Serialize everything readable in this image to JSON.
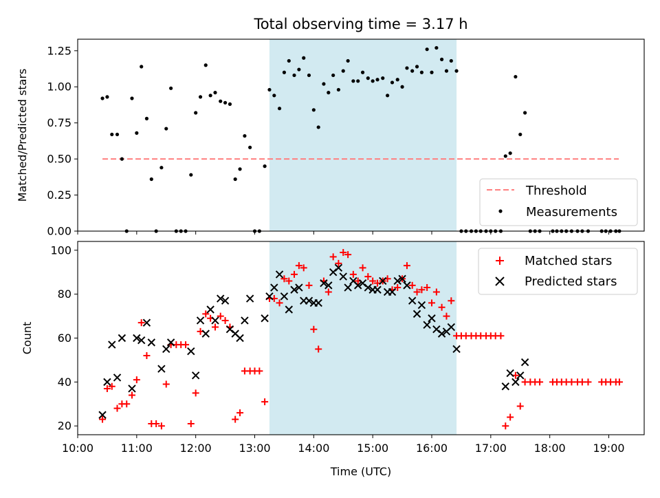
{
  "title": "Total observing time = 3.17 h",
  "colors": {
    "threshold": "#ff7f7f",
    "matched": "#ff0000",
    "predicted": "#000000",
    "shade": "#add8e6",
    "measurement": "#000000"
  },
  "chart_data": [
    {
      "type": "scatter",
      "panel": "top",
      "xlabel": "",
      "ylabel": "Matched/Predicted stars",
      "ylim": [
        0,
        1.33
      ],
      "xlim": [
        10.0,
        19.6
      ],
      "yticks": [
        "0.00",
        "0.25",
        "0.50",
        "0.75",
        "1.00",
        "1.25"
      ],
      "observing_window": [
        13.25,
        16.42
      ],
      "legend": {
        "placement": "lower right",
        "entries": [
          "Threshold",
          "Measurements"
        ]
      },
      "threshold": {
        "name": "Threshold",
        "y": 0.5,
        "x_range": [
          10.42,
          19.17
        ]
      },
      "measurements": {
        "name": "Measurements",
        "x": [
          10.42,
          10.5,
          10.58,
          10.67,
          10.75,
          10.83,
          10.92,
          11.0,
          11.08,
          11.17,
          11.25,
          11.33,
          11.42,
          11.5,
          11.58,
          11.67,
          11.75,
          11.83,
          11.92,
          12.0,
          12.08,
          12.17,
          12.25,
          12.33,
          12.42,
          12.5,
          12.58,
          12.67,
          12.75,
          12.83,
          12.92,
          13.0,
          13.08,
          13.17,
          13.25,
          13.33,
          13.42,
          13.5,
          13.58,
          13.67,
          13.75,
          13.83,
          13.92,
          14.0,
          14.08,
          14.17,
          14.25,
          14.33,
          14.42,
          14.5,
          14.58,
          14.67,
          14.75,
          14.83,
          14.92,
          15.0,
          15.08,
          15.17,
          15.25,
          15.33,
          15.42,
          15.5,
          15.58,
          15.67,
          15.75,
          15.83,
          15.92,
          16.0,
          16.08,
          16.17,
          16.25,
          16.33,
          16.42,
          16.5,
          16.58,
          16.67,
          16.75,
          16.83,
          16.92,
          17.0,
          17.08,
          17.17,
          17.25,
          17.33,
          17.42,
          17.5,
          17.58,
          17.67,
          17.75,
          17.83,
          18.05,
          18.12,
          18.2,
          18.28,
          18.37,
          18.47,
          18.55,
          18.65,
          18.88,
          18.95,
          19.03,
          19.12,
          19.18
        ],
        "y": [
          0.92,
          0.93,
          0.67,
          0.67,
          0.5,
          0.0,
          0.92,
          0.68,
          1.14,
          0.78,
          0.36,
          0.0,
          0.44,
          0.71,
          0.99,
          0.0,
          0.0,
          0.0,
          0.39,
          0.82,
          0.93,
          1.15,
          0.94,
          0.96,
          0.9,
          0.89,
          0.88,
          0.36,
          0.43,
          0.66,
          0.58,
          0.0,
          0.0,
          0.45,
          0.98,
          0.94,
          0.85,
          1.1,
          1.18,
          1.08,
          1.12,
          1.2,
          1.08,
          0.84,
          0.72,
          1.02,
          0.96,
          1.08,
          0.98,
          1.11,
          1.18,
          1.04,
          1.04,
          1.1,
          1.06,
          1.04,
          1.05,
          1.06,
          0.94,
          1.03,
          1.05,
          1.0,
          1.13,
          1.11,
          1.14,
          1.1,
          1.26,
          1.1,
          1.27,
          1.19,
          1.11,
          1.18,
          1.11,
          0.0,
          0.0,
          0.0,
          0.0,
          0.0,
          0.0,
          0.0,
          0.0,
          0.0,
          0.52,
          0.54,
          1.07,
          0.67,
          0.82,
          0.0,
          0.0,
          0.0,
          0.0,
          0.0,
          0.0,
          0.0,
          0.0,
          0.0,
          0.0,
          0.0,
          0.0,
          0.0,
          0.0,
          0.0,
          0.0
        ]
      }
    },
    {
      "type": "scatter",
      "panel": "bottom",
      "xlabel": "Time (UTC)",
      "ylabel": "Count",
      "ylim": [
        16,
        104
      ],
      "xlim": [
        10.0,
        19.6
      ],
      "yticks": [
        "20",
        "40",
        "60",
        "80",
        "100"
      ],
      "xticks": [
        "10:00",
        "11:00",
        "12:00",
        "13:00",
        "14:00",
        "15:00",
        "16:00",
        "17:00",
        "18:00",
        "19:00"
      ],
      "observing_window": [
        13.25,
        16.42
      ],
      "legend": {
        "placement": "upper right",
        "entries": [
          "Matched stars",
          "Predicted stars"
        ]
      },
      "series": [
        {
          "name": "Matched stars",
          "marker": "+",
          "x": [
            10.42,
            10.5,
            10.58,
            10.67,
            10.75,
            10.83,
            10.92,
            11.0,
            11.08,
            11.17,
            11.25,
            11.33,
            11.42,
            11.5,
            11.58,
            11.67,
            11.75,
            11.83,
            11.92,
            12.0,
            12.08,
            12.17,
            12.25,
            12.33,
            12.42,
            12.5,
            12.58,
            12.67,
            12.75,
            12.83,
            12.92,
            13.0,
            13.08,
            13.17,
            13.25,
            13.33,
            13.42,
            13.5,
            13.58,
            13.67,
            13.75,
            13.83,
            13.92,
            14.0,
            14.08,
            14.17,
            14.25,
            14.33,
            14.42,
            14.5,
            14.58,
            14.67,
            14.75,
            14.83,
            14.92,
            15.0,
            15.08,
            15.17,
            15.25,
            15.33,
            15.42,
            15.5,
            15.58,
            15.67,
            15.75,
            15.83,
            15.92,
            16.0,
            16.08,
            16.17,
            16.25,
            16.33,
            16.42,
            16.5,
            16.58,
            16.67,
            16.75,
            16.83,
            16.92,
            17.0,
            17.08,
            17.17,
            17.25,
            17.33,
            17.42,
            17.5,
            17.58,
            17.67,
            17.75,
            17.83,
            18.05,
            18.12,
            18.2,
            18.28,
            18.37,
            18.47,
            18.55,
            18.65,
            18.88,
            18.95,
            19.03,
            19.12,
            19.18
          ],
          "y": [
            23,
            37,
            38,
            28,
            30,
            30,
            34,
            41,
            67,
            52,
            21,
            21,
            20,
            39,
            57,
            57,
            57,
            57,
            21,
            35,
            63,
            71,
            69,
            65,
            70,
            68,
            65,
            23,
            26,
            45,
            45,
            45,
            45,
            31,
            78,
            78,
            76,
            87,
            86,
            89,
            93,
            92,
            84,
            64,
            55,
            86,
            81,
            97,
            94,
            99,
            98,
            89,
            86,
            92,
            88,
            86,
            85,
            86,
            87,
            82,
            83,
            87,
            93,
            84,
            81,
            82,
            83,
            76,
            81,
            74,
            70,
            77,
            61,
            61,
            61,
            61,
            61,
            61,
            61,
            61,
            61,
            61,
            20,
            24,
            43,
            29,
            40,
            40,
            40,
            40,
            40,
            40,
            40,
            40,
            40,
            40,
            40,
            40,
            40,
            40,
            40,
            40,
            40
          ]
        },
        {
          "name": "Predicted stars",
          "marker": "x",
          "x": [
            10.42,
            10.5,
            10.58,
            10.67,
            10.75,
            10.92,
            11.0,
            11.08,
            11.17,
            11.25,
            11.42,
            11.5,
            11.58,
            11.92,
            12.0,
            12.08,
            12.17,
            12.25,
            12.33,
            12.42,
            12.5,
            12.58,
            12.67,
            12.75,
            12.83,
            12.92,
            13.17,
            13.25,
            13.33,
            13.42,
            13.5,
            13.58,
            13.67,
            13.75,
            13.83,
            13.92,
            14.0,
            14.08,
            14.17,
            14.25,
            14.33,
            14.42,
            14.5,
            14.58,
            14.67,
            14.75,
            14.83,
            14.92,
            15.0,
            15.08,
            15.17,
            15.25,
            15.33,
            15.42,
            15.5,
            15.58,
            15.67,
            15.75,
            15.83,
            15.92,
            16.0,
            16.08,
            16.17,
            16.25,
            16.33,
            16.42,
            17.25,
            17.33,
            17.42,
            17.5,
            17.58
          ],
          "y": [
            25,
            40,
            57,
            42,
            60,
            37,
            60,
            59,
            67,
            58,
            46,
            55,
            58,
            54,
            43,
            68,
            62,
            73,
            68,
            78,
            77,
            64,
            62,
            60,
            68,
            78,
            69,
            79,
            83,
            89,
            79,
            73,
            82,
            83,
            77,
            77,
            76,
            76,
            85,
            84,
            90,
            92,
            88,
            83,
            86,
            84,
            85,
            83,
            82,
            82,
            86,
            81,
            81,
            86,
            87,
            84,
            77,
            71,
            75,
            66,
            69,
            64,
            62,
            63,
            65,
            55,
            38,
            44,
            40,
            43,
            49
          ]
        }
      ]
    }
  ]
}
